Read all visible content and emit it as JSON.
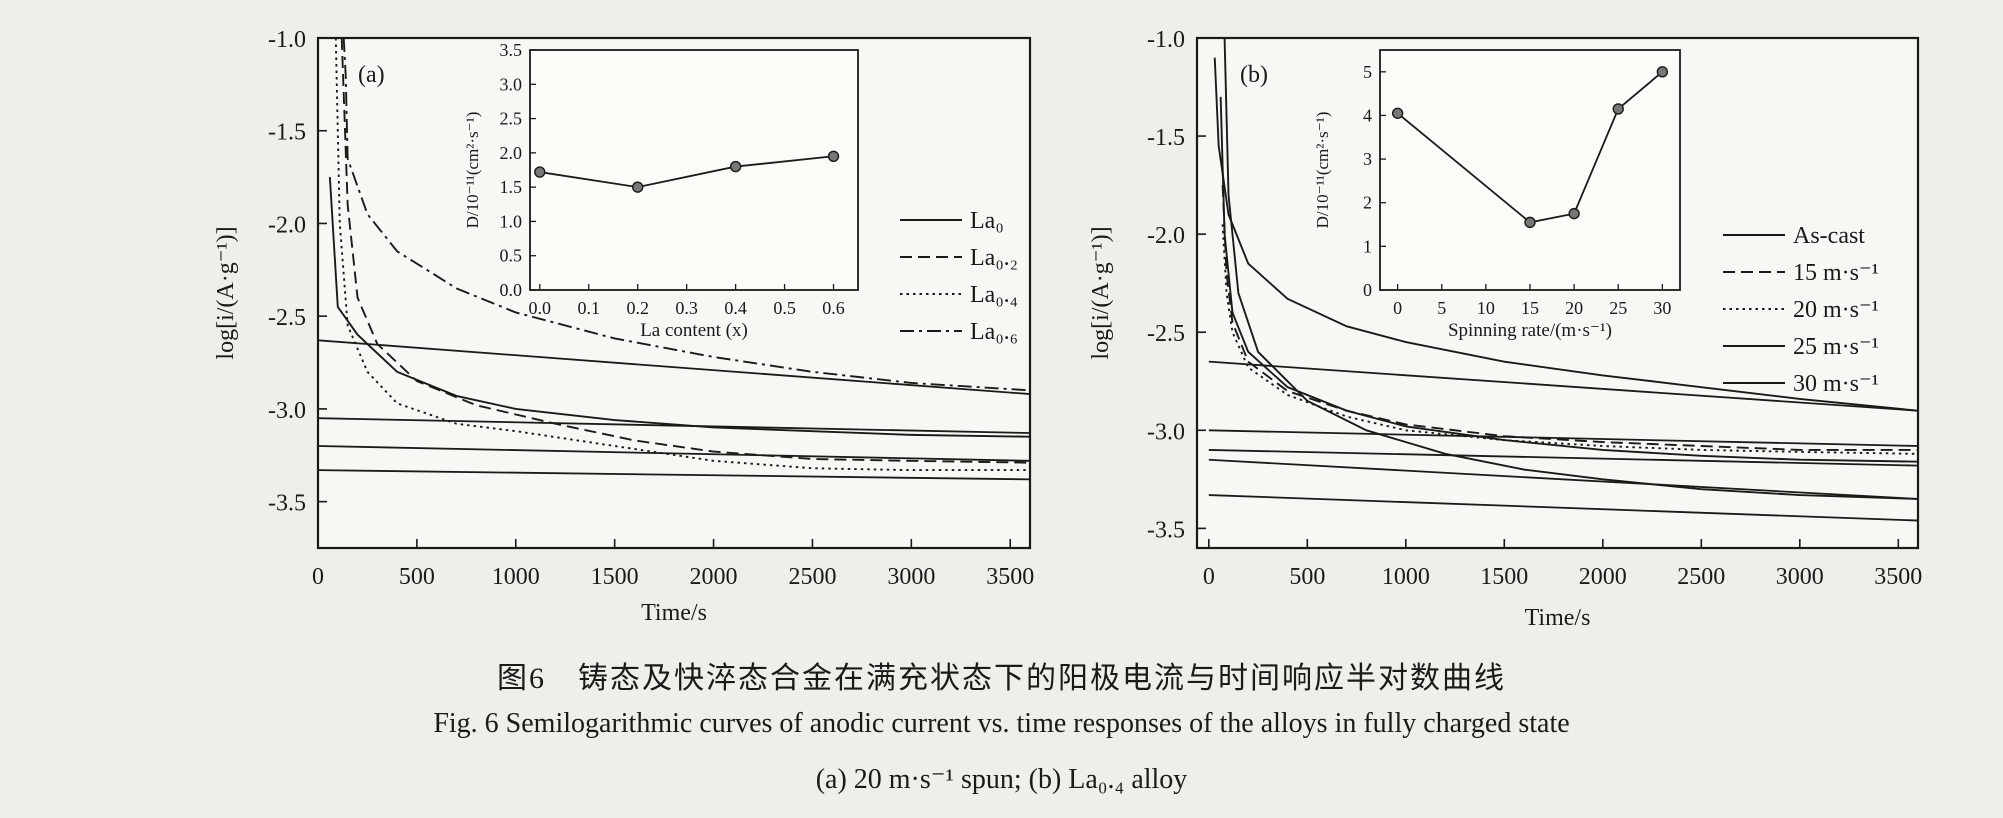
{
  "colors": {
    "ink": "#1a1a1a",
    "paper": "#efeee9",
    "plot_bg": "#f7f7f3"
  },
  "chart_data": [
    {
      "type": "line",
      "panel_label": "(a)",
      "xlabel": "Time/s",
      "ylabel": "log[i/(A·g⁻¹)]",
      "xlim": [
        0,
        3600
      ],
      "ylim": [
        -3.75,
        -1.0
      ],
      "x_ticks": [
        "0",
        "500",
        "1000",
        "1500",
        "2000",
        "2500",
        "3000",
        "3500"
      ],
      "y_ticks": [
        "-1.0",
        "-1.5",
        "-2.0",
        "-2.5",
        "-3.0",
        "-3.5"
      ],
      "grid": false,
      "legend": "right",
      "series": [
        {
          "name": "La₀",
          "dash": "solid",
          "x": [
            60,
            100,
            200,
            400,
            700,
            1000,
            1500,
            2000,
            2500,
            3000,
            3600
          ],
          "y": [
            -1.75,
            -2.45,
            -2.6,
            -2.8,
            -2.93,
            -3.0,
            -3.06,
            -3.1,
            -3.12,
            -3.14,
            -3.15
          ]
        },
        {
          "name": "La₀.₂",
          "dash": "dashed",
          "x": [
            120,
            150,
            200,
            300,
            500,
            800,
            1200,
            1600,
            2000,
            2500,
            3000,
            3600
          ],
          "y": [
            -1.0,
            -1.9,
            -2.4,
            -2.65,
            -2.85,
            -2.98,
            -3.08,
            -3.17,
            -3.23,
            -3.27,
            -3.28,
            -3.29
          ]
        },
        {
          "name": "La₀.₄",
          "dash": "dotted",
          "x": [
            90,
            110,
            150,
            250,
            400,
            700,
            1000,
            1500,
            2000,
            2500,
            3000,
            3600
          ],
          "y": [
            -1.0,
            -2.0,
            -2.55,
            -2.8,
            -2.97,
            -3.08,
            -3.12,
            -3.2,
            -3.28,
            -3.32,
            -3.33,
            -3.33
          ]
        },
        {
          "name": "La₀.₆",
          "dash": "dashdot",
          "x": [
            130,
            140,
            150,
            250,
            400,
            700,
            1000,
            1500,
            2000,
            2500,
            3000,
            3600
          ],
          "y": [
            -1.0,
            -1.2,
            -1.65,
            -1.95,
            -2.15,
            -2.35,
            -2.48,
            -2.62,
            -2.72,
            -2.8,
            -2.86,
            -2.9
          ]
        }
      ],
      "extra_lines": [
        {
          "x": [
            0,
            3600
          ],
          "y": [
            -2.63,
            -2.92
          ]
        },
        {
          "x": [
            0,
            3600
          ],
          "y": [
            -3.05,
            -3.13
          ]
        },
        {
          "x": [
            0,
            3600
          ],
          "y": [
            -3.2,
            -3.28
          ]
        },
        {
          "x": [
            0,
            3600
          ],
          "y": [
            -3.33,
            -3.38
          ]
        }
      ],
      "inset": {
        "type": "line",
        "xlabel": "La content (x)",
        "ylabel": "D/10⁻¹¹(cm²·s⁻¹)",
        "xlim": [
          -0.02,
          0.65
        ],
        "ylim": [
          0.0,
          3.5
        ],
        "x_ticks": [
          "0.0",
          "0.1",
          "0.2",
          "0.3",
          "0.4",
          "0.5",
          "0.6"
        ],
        "y_ticks": [
          "0.0",
          "0.5",
          "1.0",
          "1.5",
          "2.0",
          "2.5",
          "3.0",
          "3.5"
        ],
        "x": [
          0.0,
          0.2,
          0.4,
          0.6
        ],
        "y": [
          1.72,
          1.5,
          1.8,
          1.95
        ]
      }
    },
    {
      "type": "line",
      "panel_label": "(b)",
      "xlabel": "Time/s",
      "ylabel": "log[i/(A·g⁻¹)]",
      "xlim": [
        -60,
        3600
      ],
      "ylim": [
        -3.6,
        -1.0
      ],
      "x_ticks": [
        "0",
        "500",
        "1000",
        "1500",
        "2000",
        "2500",
        "3000",
        "3500"
      ],
      "y_ticks": [
        "-1.0",
        "-1.5",
        "-2.0",
        "-2.5",
        "-3.0",
        "-3.5"
      ],
      "grid": false,
      "legend": "right",
      "series": [
        {
          "name": "As-cast",
          "dash": "solid",
          "x": [
            30,
            50,
            100,
            200,
            400,
            700,
            1000,
            1500,
            2000,
            2500,
            3000,
            3600
          ],
          "y": [
            -1.1,
            -1.55,
            -1.9,
            -2.15,
            -2.33,
            -2.47,
            -2.55,
            -2.65,
            -2.72,
            -2.78,
            -2.84,
            -2.9
          ]
        },
        {
          "name": "15 m·s⁻¹",
          "dash": "dashed",
          "x": [
            70,
            90,
            120,
            200,
            400,
            700,
            1000,
            1500,
            2000,
            2500,
            3000,
            3600
          ],
          "y": [
            -1.75,
            -2.2,
            -2.45,
            -2.65,
            -2.8,
            -2.9,
            -2.97,
            -3.03,
            -3.06,
            -3.08,
            -3.1,
            -3.1
          ]
        },
        {
          "name": "20 m·s⁻¹",
          "dash": "dotted",
          "x": [
            70,
            90,
            120,
            200,
            400,
            700,
            1000,
            1500,
            2000,
            2500,
            3000,
            3600
          ],
          "y": [
            -1.95,
            -2.3,
            -2.5,
            -2.68,
            -2.82,
            -2.93,
            -3.0,
            -3.05,
            -3.08,
            -3.1,
            -3.11,
            -3.12
          ]
        },
        {
          "name": "25 m·s⁻¹",
          "dash": "solid",
          "x": [
            60,
            80,
            120,
            200,
            400,
            700,
            1000,
            1500,
            2000,
            2500,
            3000,
            3600
          ],
          "y": [
            -1.3,
            -2.0,
            -2.4,
            -2.6,
            -2.78,
            -2.9,
            -2.98,
            -3.05,
            -3.1,
            -3.13,
            -3.15,
            -3.16
          ]
        },
        {
          "name": "30 m·s⁻¹",
          "dash": "solid",
          "x": [
            80,
            100,
            150,
            250,
            500,
            800,
            1200,
            1600,
            2000,
            2500,
            3000,
            3600
          ],
          "y": [
            -1.0,
            -1.8,
            -2.3,
            -2.6,
            -2.85,
            -3.0,
            -3.12,
            -3.2,
            -3.25,
            -3.3,
            -3.33,
            -3.35
          ]
        }
      ],
      "extra_lines": [
        {
          "x": [
            0,
            3600
          ],
          "y": [
            -2.65,
            -2.9
          ]
        },
        {
          "x": [
            0,
            3600
          ],
          "y": [
            -3.0,
            -3.08
          ]
        },
        {
          "x": [
            0,
            3600
          ],
          "y": [
            -3.1,
            -3.18
          ]
        },
        {
          "x": [
            0,
            3600
          ],
          "y": [
            -3.15,
            -3.35
          ]
        },
        {
          "x": [
            0,
            3600
          ],
          "y": [
            -3.33,
            -3.46
          ]
        }
      ],
      "inset": {
        "type": "line",
        "xlabel": "Spinning rate/(m·s⁻¹)",
        "ylabel": "D/10⁻¹¹(cm²·s⁻¹)",
        "xlim": [
          -2,
          32
        ],
        "ylim": [
          0,
          5.5
        ],
        "x_ticks": [
          "0",
          "5",
          "10",
          "15",
          "20",
          "25",
          "30"
        ],
        "y_ticks": [
          "0",
          "1",
          "2",
          "3",
          "4",
          "5"
        ],
        "x": [
          0,
          15,
          20,
          25,
          30
        ],
        "y": [
          4.05,
          1.55,
          1.75,
          4.15,
          5.0
        ]
      }
    }
  ],
  "caption": {
    "cn": "图6　铸态及快淬态合金在满充状态下的阳极电流与时间响应半对数曲线",
    "en": "Fig. 6   Semilogarithmic curves of anodic current vs. time responses of the alloys in fully charged state",
    "sub": "(a) 20 m·s⁻¹ spun; (b) La₀.₄ alloy"
  }
}
